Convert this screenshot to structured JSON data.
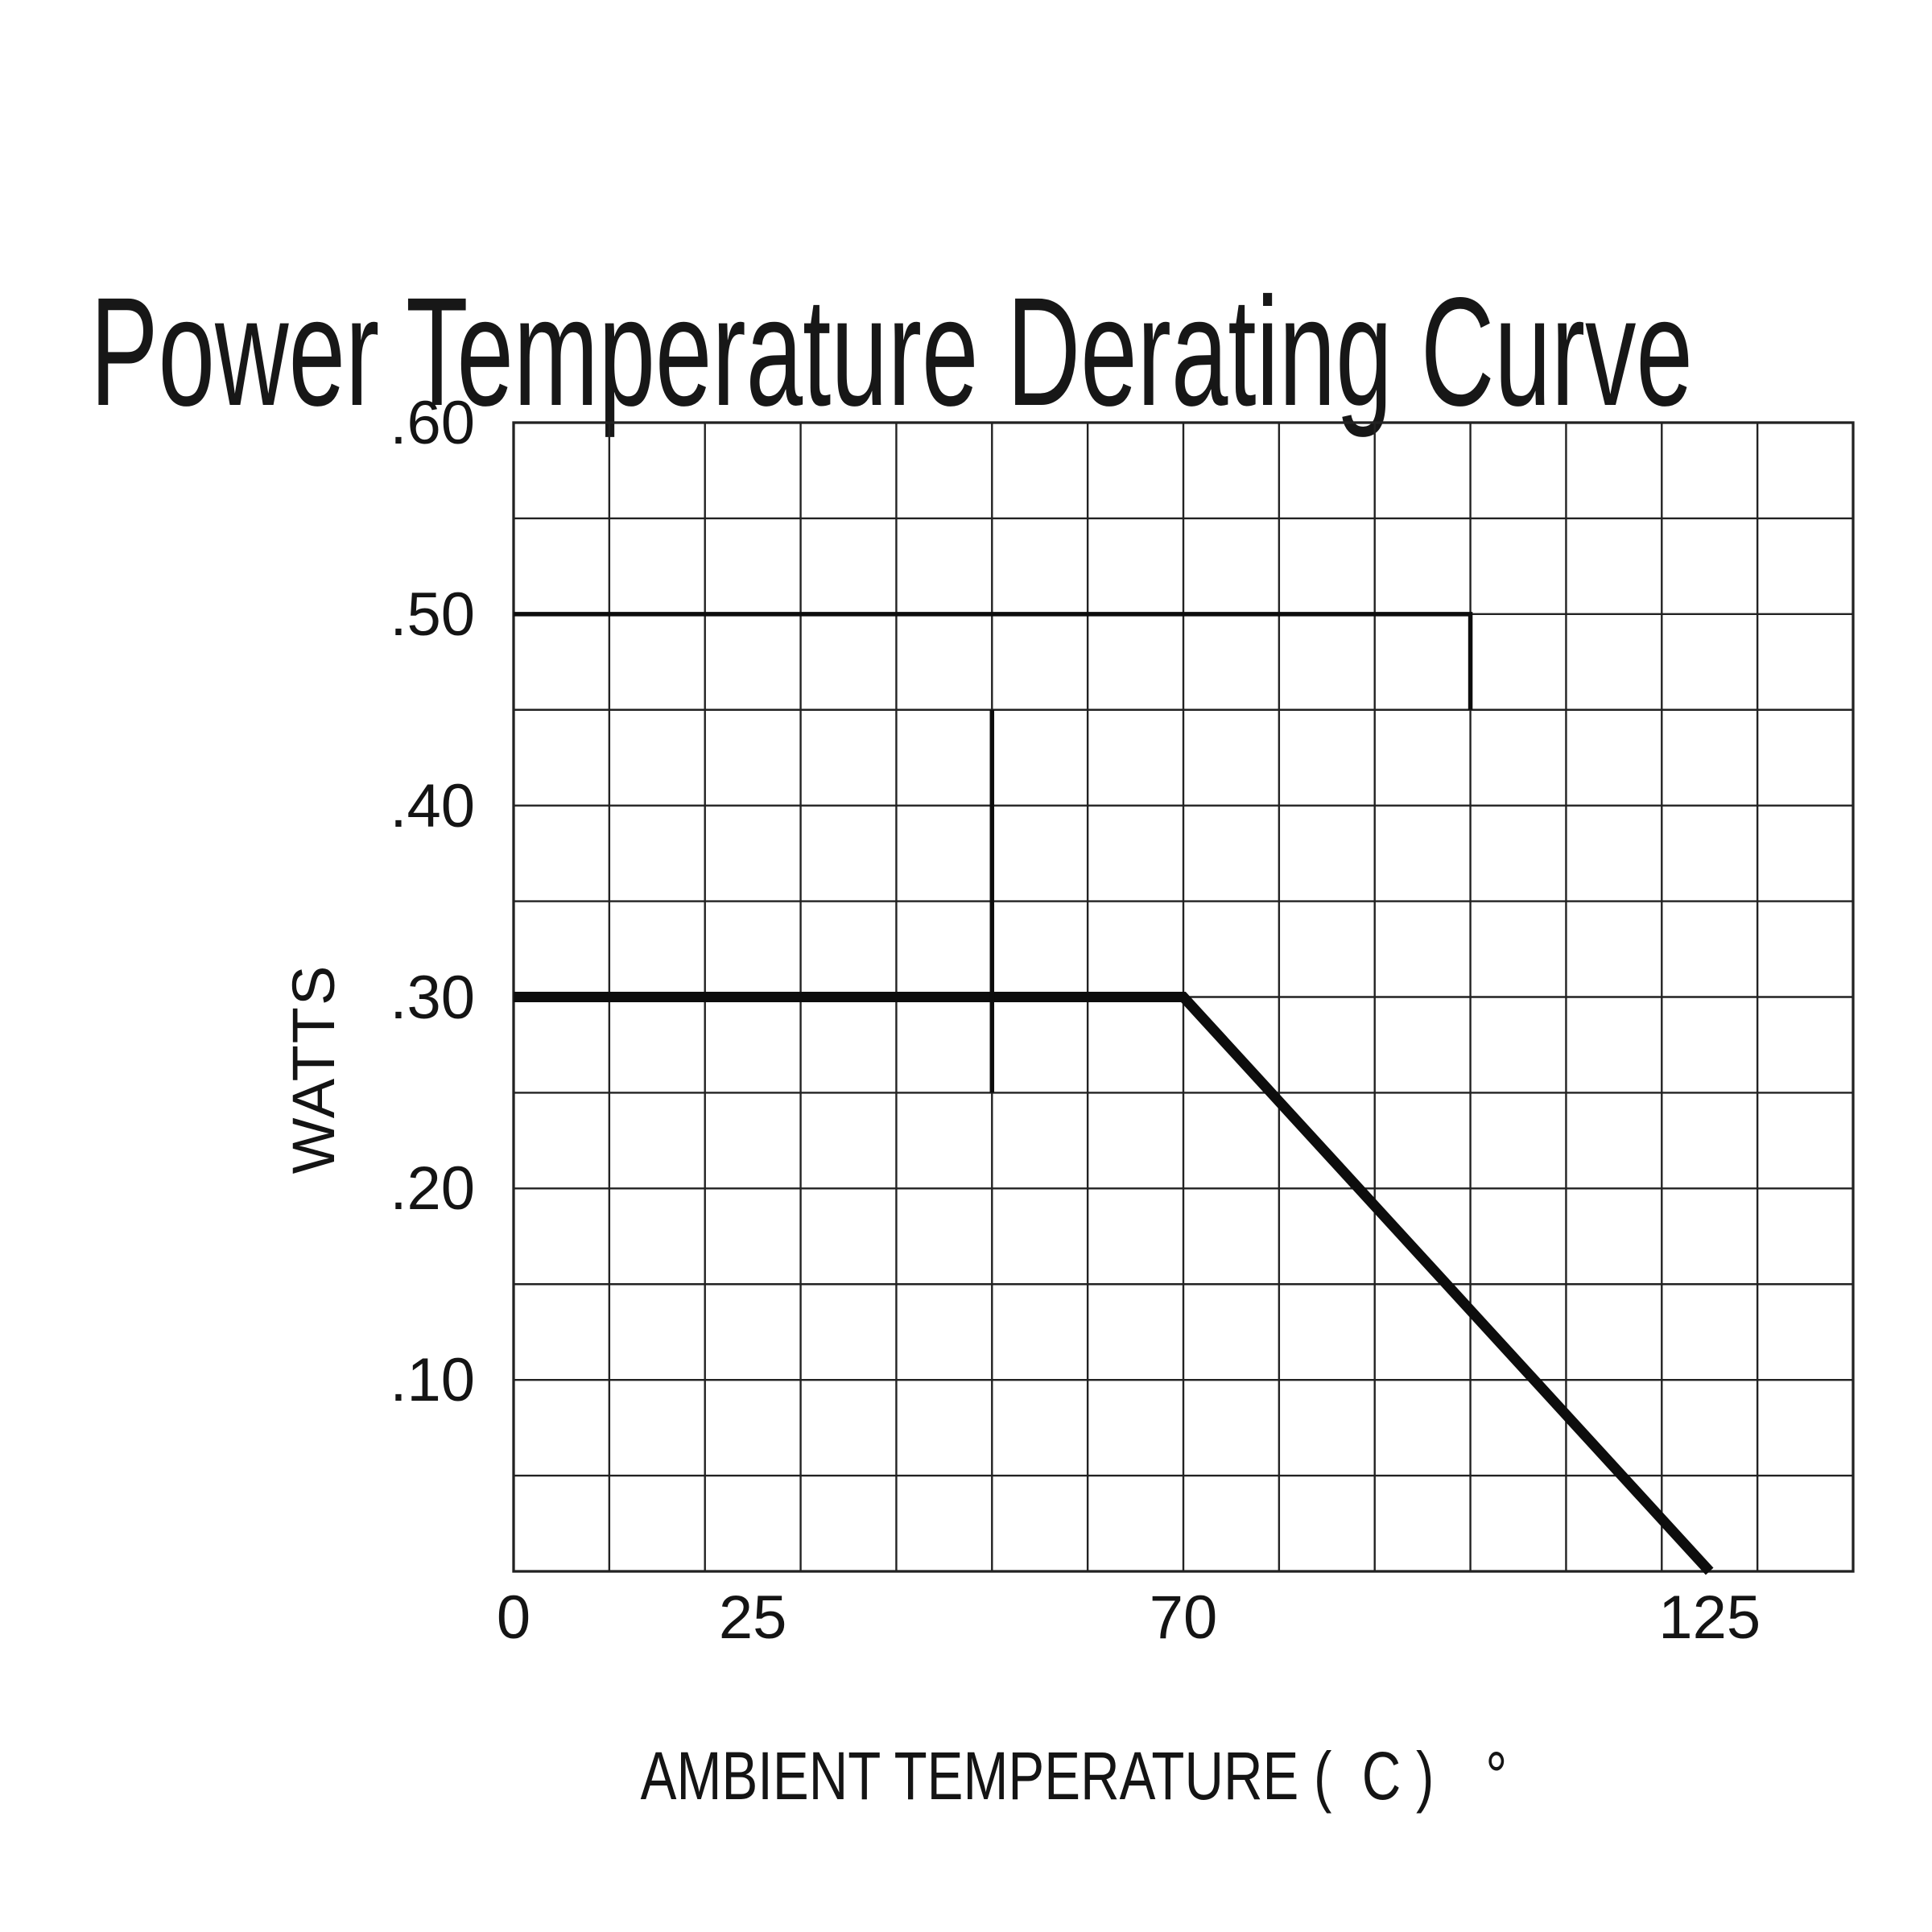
{
  "page": {
    "background": "#ffffff",
    "ink_color": "#161616",
    "grid_color": "#222222",
    "curve_color": "#0d0d0d"
  },
  "chart_data": {
    "type": "line",
    "title": "Power Temperature Derating Curve",
    "xlabel": "AMBIENT TEMPERATURE (  C )",
    "xlabel_degree_symbol": "°",
    "ylabel": "WATTS",
    "xlim": [
      0,
      140
    ],
    "ylim": [
      0,
      0.6
    ],
    "x_gridline_step": 10,
    "y_gridline_step": 0.05,
    "grid": true,
    "legend": false,
    "x_ticks": [
      {
        "value": 0,
        "label": "0"
      },
      {
        "value": 25,
        "label": "25"
      },
      {
        "value": 70,
        "label": "70"
      },
      {
        "value": 125,
        "label": "125"
      }
    ],
    "y_ticks": [
      {
        "value": 0.6,
        "label": ".60"
      },
      {
        "value": 0.5,
        "label": ".50"
      },
      {
        "value": 0.4,
        "label": ".40"
      },
      {
        "value": 0.3,
        "label": ".30"
      },
      {
        "value": 0.2,
        "label": ".20"
      },
      {
        "value": 0.1,
        "label": ".10"
      }
    ],
    "series": [
      {
        "name": "derating-curve",
        "description": "Rated power vs ambient temperature: flat at 0.30 W up to 70 C, derates linearly to 0 W at 125 C",
        "points": [
          [
            0,
            0.3
          ],
          [
            70,
            0.3
          ],
          [
            125,
            0
          ]
        ],
        "stroke_width": 13
      },
      {
        "name": "reference-line-0.50W",
        "description": "Thick reference line along 0.50 W from 0 C to 100 C with short drop to 0.45 W at 100 C",
        "points": [
          [
            0,
            0.5
          ],
          [
            100,
            0.5
          ],
          [
            100,
            0.45
          ]
        ],
        "stroke_width": 5.5
      },
      {
        "name": "marker-line-50C",
        "description": "Thick vertical crosshair at 50 C spanning 0.45 W down to 0.25 W",
        "points": [
          [
            50,
            0.45
          ],
          [
            50,
            0.25
          ]
        ],
        "stroke_width": 5.5
      }
    ]
  }
}
